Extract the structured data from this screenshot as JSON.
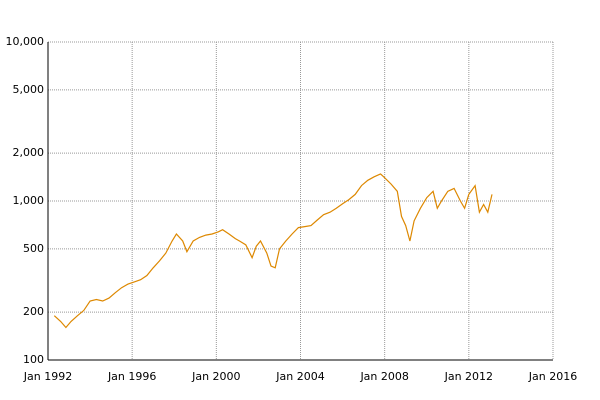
{
  "chart_data": {
    "type": "line",
    "log_scale": true,
    "grid": true,
    "color": "#dd8800",
    "x": [
      1992.3,
      1992.6,
      1992.85,
      1993.1,
      1993.4,
      1993.7,
      1994.0,
      1994.3,
      1994.6,
      1994.9,
      1995.2,
      1995.5,
      1995.8,
      1996.1,
      1996.4,
      1996.7,
      1997.0,
      1997.3,
      1997.6,
      1997.9,
      1998.1,
      1998.4,
      1998.6,
      1998.9,
      1999.2,
      1999.5,
      1999.8,
      2000.1,
      2000.3,
      2000.6,
      2000.9,
      2001.1,
      2001.4,
      2001.7,
      2001.9,
      2002.1,
      2002.4,
      2002.6,
      2002.8,
      2003.0,
      2003.3,
      2003.6,
      2003.9,
      2004.2,
      2004.5,
      2004.8,
      2005.1,
      2005.4,
      2005.7,
      2006.0,
      2006.3,
      2006.6,
      2006.9,
      2007.2,
      2007.5,
      2007.8,
      2008.0,
      2008.3,
      2008.6,
      2008.8,
      2009.0,
      2009.2,
      2009.4,
      2009.7,
      2010.0,
      2010.3,
      2010.5,
      2010.7,
      2011.0,
      2011.3,
      2011.6,
      2011.8,
      2012.0,
      2012.3,
      2012.5,
      2012.7,
      2012.9,
      2013.1
    ],
    "values": [
      190,
      175,
      160,
      175,
      190,
      205,
      235,
      240,
      235,
      245,
      265,
      285,
      300,
      310,
      320,
      340,
      380,
      420,
      470,
      560,
      620,
      560,
      480,
      560,
      590,
      610,
      620,
      640,
      660,
      620,
      580,
      560,
      530,
      440,
      520,
      560,
      470,
      390,
      380,
      500,
      560,
      620,
      680,
      690,
      700,
      760,
      820,
      850,
      900,
      960,
      1020,
      1100,
      1250,
      1350,
      1420,
      1480,
      1400,
      1280,
      1150,
      800,
      700,
      560,
      750,
      900,
      1050,
      1150,
      900,
      1000,
      1150,
      1200,
      1000,
      900,
      1100,
      1250,
      850,
      950,
      850,
      1100
    ],
    "xlim": [
      1992,
      2016
    ],
    "xticks": [
      {
        "value": 1992,
        "label": "Jan 1992"
      },
      {
        "value": 1996,
        "label": "Jan 1996"
      },
      {
        "value": 2000,
        "label": "Jan 2000"
      },
      {
        "value": 2004,
        "label": "Jan 2004"
      },
      {
        "value": 2008,
        "label": "Jan 2008"
      },
      {
        "value": 2012,
        "label": "Jan 2012"
      },
      {
        "value": 2016,
        "label": "Jan 2016"
      }
    ],
    "ylim": [
      100,
      10000
    ],
    "yticks": [
      100,
      200,
      500,
      {
        "value": 1000,
        "label": "1,000"
      },
      {
        "value": 2000,
        "label": "2,000"
      },
      {
        "value": 5000,
        "label": "5,000"
      },
      {
        "value": 10000,
        "label": "10,000"
      }
    ]
  }
}
